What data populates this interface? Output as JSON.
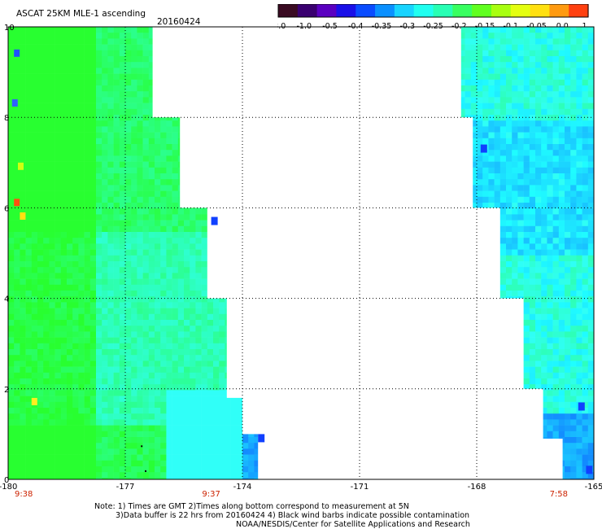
{
  "header": {
    "title": "ASCAT 25KM MLE-1 ascending",
    "date": "20160424"
  },
  "colorbar": {
    "ticks": [
      "-3.0",
      "-1.0",
      "-0.5",
      "-0.4",
      "-0.35",
      "-0.3",
      "-0.25",
      "-0.2",
      "-0.15",
      "-0.1",
      "-0.05",
      "0.0",
      "1.0"
    ],
    "colors": [
      "#3a0b22",
      "#3a0070",
      "#5a00c0",
      "#1a10e8",
      "#0a4cff",
      "#0a90ff",
      "#18d4ff",
      "#20fff0",
      "#28ffb4",
      "#38ff60",
      "#60ff20",
      "#a8ff10",
      "#e4ff10",
      "#ffe010",
      "#ff9a10",
      "#ff4010"
    ]
  },
  "map": {
    "lon_range": [
      -180,
      -165
    ],
    "lat_range": [
      0,
      10
    ],
    "lon_ticks": [
      {
        "value": -180,
        "label": "-180"
      },
      {
        "value": -177,
        "label": "-177"
      },
      {
        "value": -174,
        "label": "-174"
      },
      {
        "value": -171,
        "label": "-171"
      },
      {
        "value": -168,
        "label": "-168"
      },
      {
        "value": -165,
        "label": "-165"
      }
    ],
    "lat_ticks": [
      {
        "value": 0,
        "label": "0"
      },
      {
        "value": 2,
        "label": "2"
      },
      {
        "value": 4,
        "label": "4"
      },
      {
        "value": 6,
        "label": "6"
      },
      {
        "value": 8,
        "label": "8"
      },
      {
        "value": 10,
        "label": "10"
      }
    ],
    "pass_times": [
      {
        "lon": -179.6,
        "label": "9:38"
      },
      {
        "lon": -174.8,
        "label": "9:37"
      },
      {
        "lon": -165.9,
        "label": "7:58"
      }
    ],
    "swaths": [
      {
        "name": "west-swath",
        "west_lon": -180,
        "east_edge": [
          [
            0,
            -173.5
          ],
          [
            1,
            -173.6
          ],
          [
            1.8,
            -174.0
          ],
          [
            4,
            -174.4
          ],
          [
            6,
            -174.9
          ],
          [
            8,
            -175.6
          ],
          [
            10,
            -176.3
          ]
        ]
      },
      {
        "name": "east-swath",
        "west_edge": [
          [
            0,
            -165.6
          ],
          [
            0.9,
            -165.8
          ],
          [
            2,
            -166.3
          ],
          [
            4,
            -166.8
          ],
          [
            6,
            -167.4
          ],
          [
            8,
            -168.1
          ],
          [
            10,
            -168.4
          ]
        ],
        "east_lon": -165
      }
    ]
  },
  "notes": [
    "Note: 1) Times are GMT 2)Times along bottom correspond to measurement at 5N",
    "3)Data buffer is 22 hrs from 20160424 4) Black wind barbs indicate possible contamination",
    "NOAA/NESDIS/Center for Satellite Applications and Research"
  ]
}
